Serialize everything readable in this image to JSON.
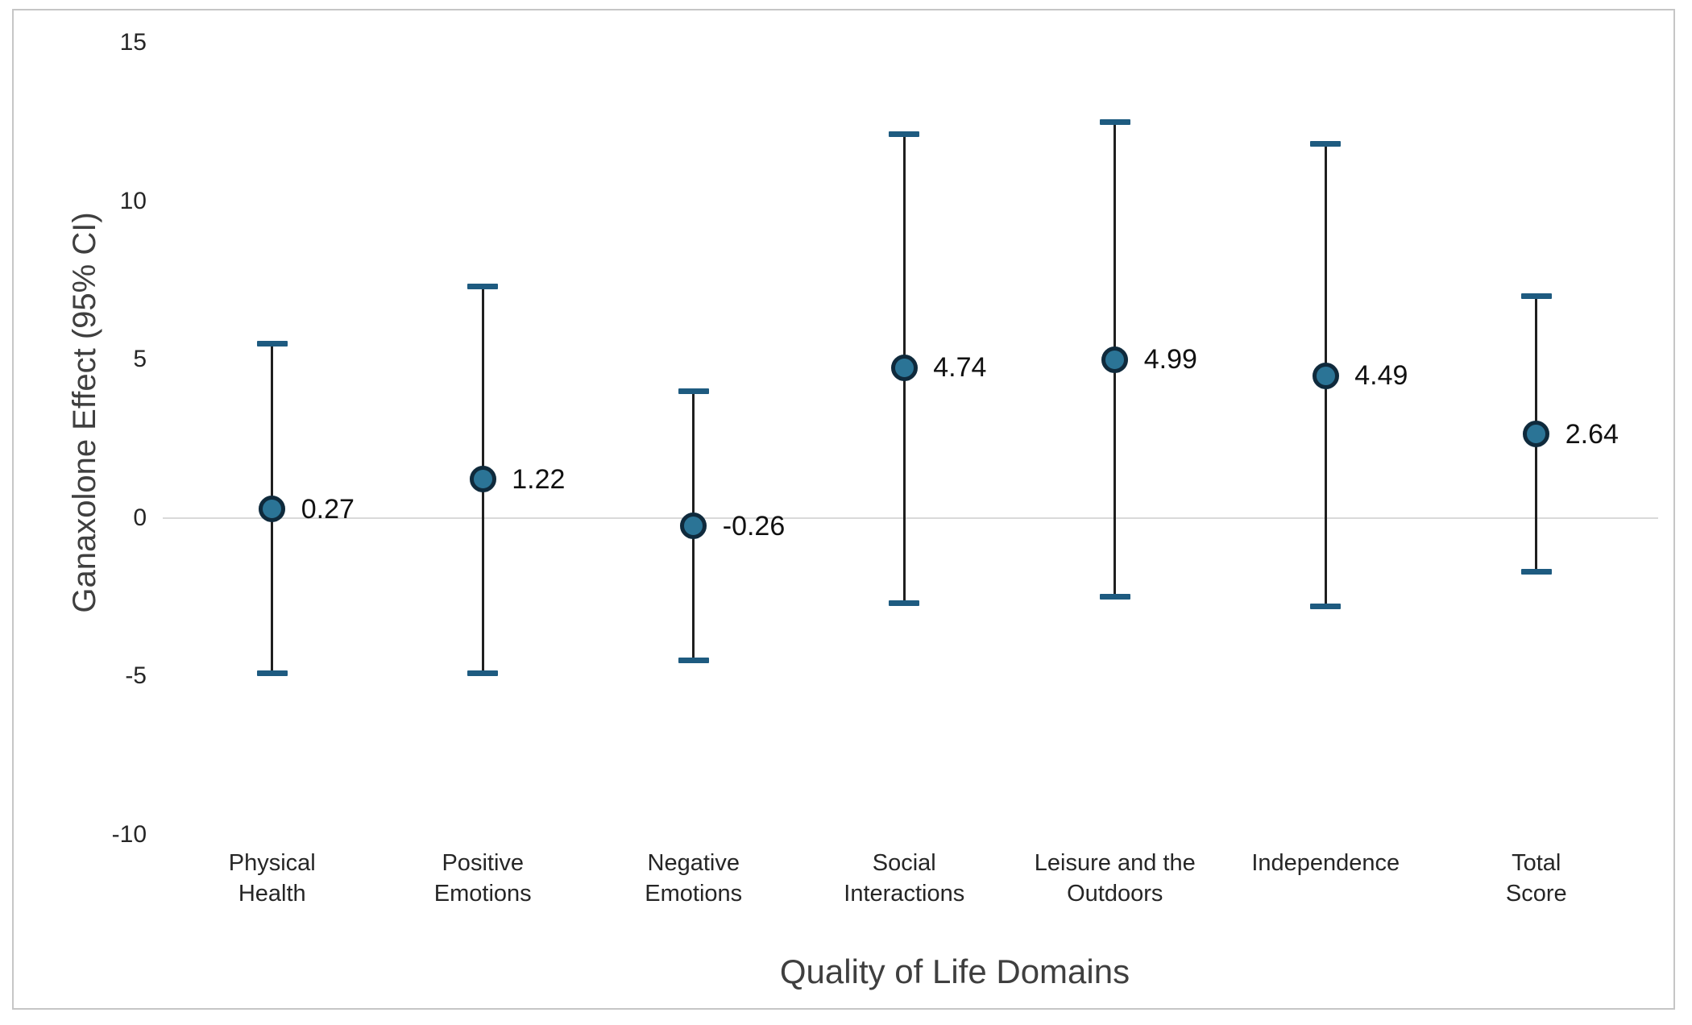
{
  "chart_data": {
    "type": "scatter",
    "subtype": "point-estimates-with-95ci-error-bars",
    "title": "",
    "xlabel": "Quality of Life Domains",
    "ylabel": "Ganaxolone Effect (95% CI)",
    "ylim": [
      -10,
      15
    ],
    "yticks": [
      15,
      10,
      5,
      0,
      -5,
      -10
    ],
    "zero_line": true,
    "grid": "off",
    "legend": "none",
    "categories": [
      "Physical Health",
      "Positive Emotions",
      "Negative Emotions",
      "Social Interactions",
      "Leisure and the Outdoors",
      "Independence",
      "Total Score"
    ],
    "category_lines": [
      [
        "Physical",
        "Health"
      ],
      [
        "Positive",
        "Emotions"
      ],
      [
        "Negative",
        "Emotions"
      ],
      [
        "Social",
        "Interactions"
      ],
      [
        "Leisure and the",
        "Outdoors"
      ],
      [
        "Independence"
      ],
      [
        "Total",
        "Score"
      ]
    ],
    "series": [
      {
        "name": "Ganaxolone effect estimate",
        "values": [
          0.27,
          1.22,
          -0.26,
          4.74,
          4.99,
          4.49,
          2.64
        ],
        "value_labels": [
          "0.27",
          "1.22",
          "-0.26",
          "4.74",
          "4.99",
          "4.49",
          "2.64"
        ],
        "ci_lower": [
          -4.9,
          -4.9,
          -4.5,
          -2.7,
          -2.5,
          -2.8,
          -1.7
        ],
        "ci_upper": [
          5.5,
          7.3,
          4.0,
          12.1,
          12.5,
          11.8,
          7.0
        ]
      }
    ]
  },
  "colors": {
    "marker_fill": "#2b7496",
    "marker_ring": "#0f2a3c",
    "error_cap": "#1e5b80",
    "whisker": "#1f1f1f",
    "zero_line": "#d9d9d9",
    "tick_text": "#262626",
    "axis_title_text": "#3f3f3f",
    "value_label_text": "#111111",
    "frame_border": "#c6c6c6",
    "background": "#ffffff"
  }
}
